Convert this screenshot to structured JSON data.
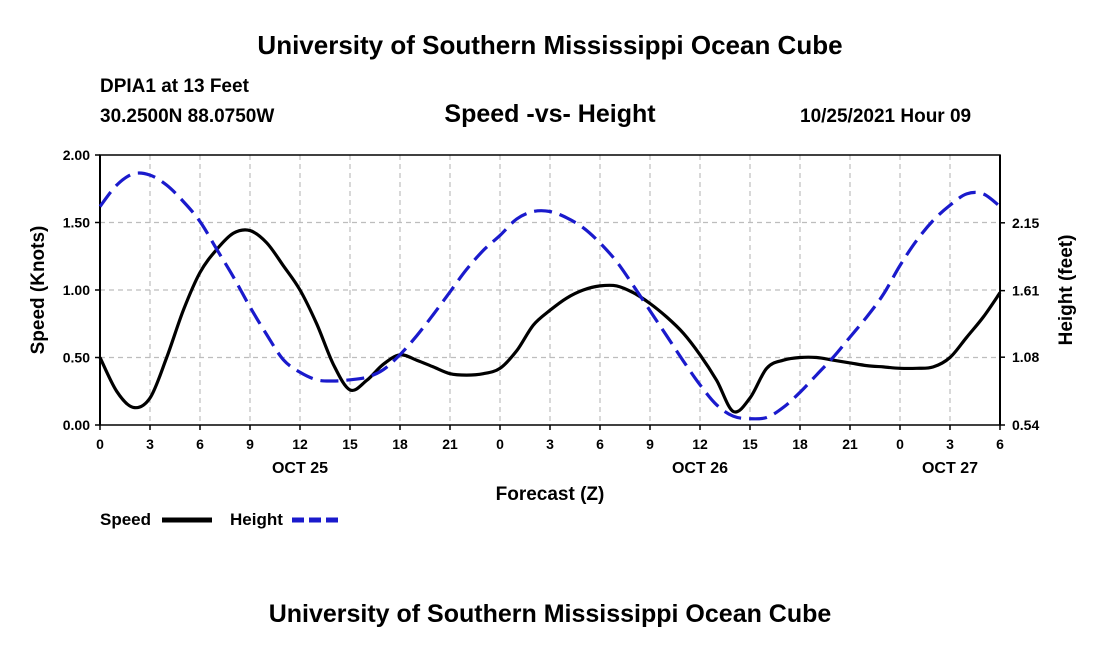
{
  "header": {
    "title": "University of Southern Mississippi Ocean Cube",
    "station": "DPIA1 at 13 Feet",
    "coords": "30.2500N  88.0750W",
    "subtitle": "Speed -vs- Height",
    "timestamp": "10/25/2021 Hour 09"
  },
  "footer": {
    "title": "University of Southern Mississippi Ocean Cube"
  },
  "chart_data": {
    "type": "line",
    "title": "Speed -vs- Height",
    "xlabel": "Forecast (Z)",
    "ylabel": "Speed (Knots)",
    "y2label": "Height (feet)",
    "grid": true,
    "xlim": [
      0,
      54
    ],
    "ylim": [
      0,
      2.0
    ],
    "y2lim": [
      0.54,
      2.69
    ],
    "x_ticks": [
      0,
      3,
      6,
      9,
      12,
      15,
      18,
      21,
      24,
      27,
      30,
      33,
      36,
      39,
      42,
      45,
      48,
      51,
      54
    ],
    "x_tick_labels": [
      "0",
      "3",
      "6",
      "9",
      "12",
      "15",
      "18",
      "21",
      "0",
      "3",
      "6",
      "9",
      "12",
      "15",
      "18",
      "21",
      "0",
      "3",
      "6"
    ],
    "date_labels": [
      {
        "x": 12,
        "label": "OCT 25"
      },
      {
        "x": 36,
        "label": "OCT 26"
      },
      {
        "x": 51,
        "label": "OCT 27"
      }
    ],
    "y_ticks": [
      0,
      0.5,
      1.0,
      1.5,
      2.0
    ],
    "y_tick_labels": [
      "0.00",
      "0.50",
      "1.00",
      "1.50",
      "2.00"
    ],
    "y2_ticks": [
      0.54,
      1.08,
      1.61,
      2.15
    ],
    "y2_tick_labels": [
      "0.54",
      "1.08",
      "1.61",
      "2.15"
    ],
    "series": [
      {
        "name": "Speed",
        "axis": "left",
        "color": "#000000",
        "style": "solid",
        "x": [
          0,
          1,
          2,
          3,
          4,
          5,
          6,
          7,
          8,
          9,
          10,
          11,
          12,
          13,
          14,
          15,
          16,
          17,
          18,
          19,
          20,
          21,
          22,
          23,
          24,
          25,
          26,
          27,
          28,
          29,
          30,
          31,
          32,
          33,
          34,
          35,
          36,
          37,
          38,
          39,
          40,
          41,
          42,
          43,
          44,
          45,
          46,
          47,
          48,
          49,
          50,
          51,
          52,
          53,
          54
        ],
        "values": [
          0.5,
          0.25,
          0.13,
          0.2,
          0.5,
          0.85,
          1.13,
          1.3,
          1.42,
          1.44,
          1.35,
          1.18,
          1.0,
          0.75,
          0.45,
          0.26,
          0.33,
          0.45,
          0.52,
          0.48,
          0.43,
          0.38,
          0.37,
          0.38,
          0.42,
          0.55,
          0.74,
          0.85,
          0.94,
          1.0,
          1.03,
          1.03,
          0.98,
          0.9,
          0.8,
          0.68,
          0.52,
          0.33,
          0.1,
          0.2,
          0.42,
          0.48,
          0.5,
          0.5,
          0.48,
          0.46,
          0.44,
          0.43,
          0.42,
          0.42,
          0.43,
          0.5,
          0.65,
          0.8,
          0.98
        ]
      },
      {
        "name": "Height",
        "axis": "right",
        "color": "#1a1acc",
        "style": "dashed",
        "x": [
          0,
          1,
          2,
          3,
          4,
          5,
          6,
          7,
          8,
          9,
          10,
          11,
          12,
          13,
          14,
          15,
          16,
          17,
          18,
          19,
          20,
          21,
          22,
          23,
          24,
          25,
          26,
          27,
          28,
          29,
          30,
          31,
          32,
          33,
          34,
          35,
          36,
          37,
          38,
          39,
          40,
          41,
          42,
          43,
          44,
          45,
          46,
          47,
          48,
          49,
          50,
          51,
          52,
          53,
          54
        ],
        "values": [
          2.28,
          2.45,
          2.54,
          2.53,
          2.45,
          2.32,
          2.16,
          1.94,
          1.72,
          1.48,
          1.26,
          1.06,
          0.96,
          0.9,
          0.89,
          0.9,
          0.92,
          0.98,
          1.1,
          1.25,
          1.42,
          1.6,
          1.78,
          1.93,
          2.05,
          2.18,
          2.24,
          2.24,
          2.19,
          2.11,
          1.99,
          1.84,
          1.65,
          1.45,
          1.25,
          1.05,
          0.86,
          0.7,
          0.61,
          0.59,
          0.6,
          0.68,
          0.8,
          0.94,
          1.08,
          1.24,
          1.4,
          1.58,
          1.81,
          2.01,
          2.17,
          2.29,
          2.38,
          2.38,
          2.28
        ]
      }
    ]
  }
}
